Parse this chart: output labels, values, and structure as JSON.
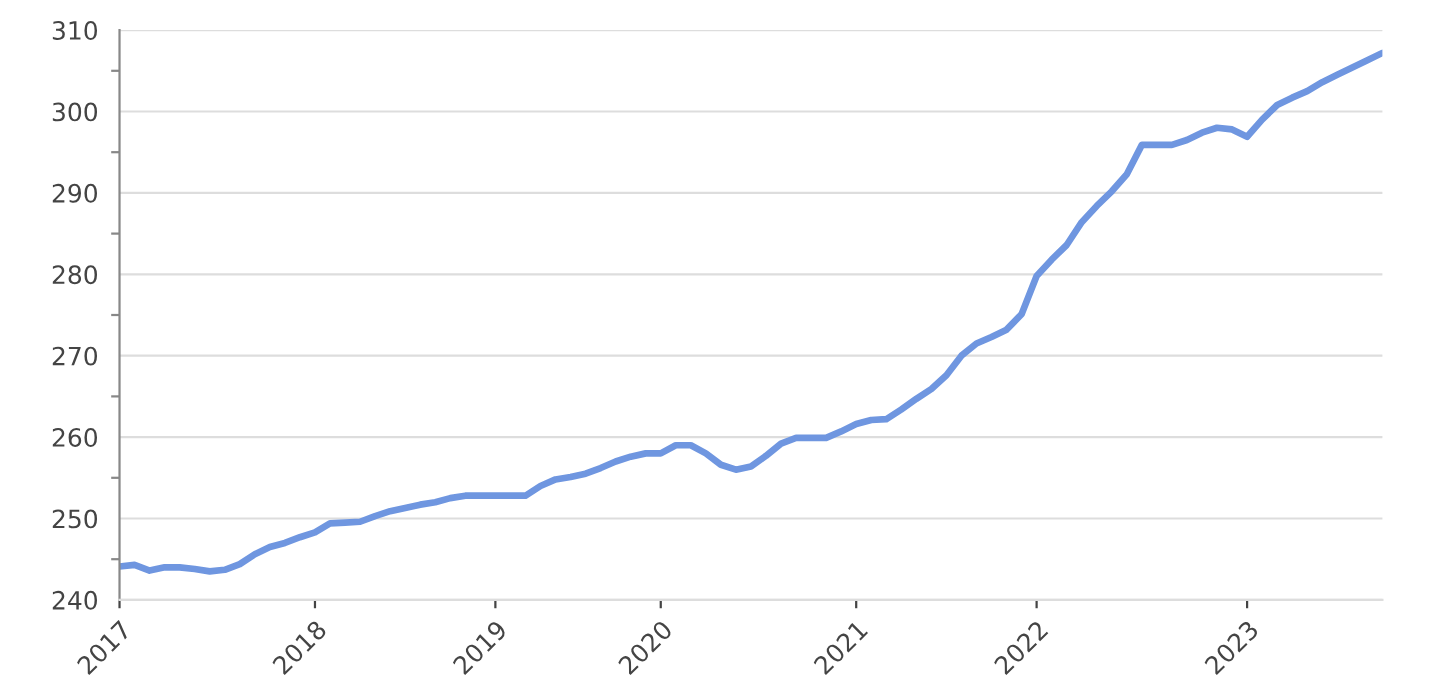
{
  "chart_data": {
    "type": "line",
    "categories": [
      "2017",
      null,
      null,
      null,
      null,
      null,
      null,
      null,
      null,
      null,
      null,
      null,
      null,
      "2018",
      null,
      null,
      null,
      null,
      null,
      null,
      null,
      null,
      null,
      null,
      null,
      "2019",
      null,
      null,
      null,
      null,
      null,
      null,
      null,
      null,
      null,
      null,
      "2020",
      null,
      null,
      null,
      null,
      null,
      null,
      null,
      null,
      null,
      null,
      null,
      null,
      "2021",
      null,
      null,
      null,
      null,
      null,
      null,
      null,
      null,
      null,
      null,
      null,
      "2022",
      null,
      null,
      null,
      null,
      null,
      null,
      null,
      null,
      null,
      null,
      null,
      null,
      null,
      "2023",
      null,
      null,
      null,
      null,
      null,
      null,
      null,
      null,
      null
    ],
    "series": [
      {
        "color": "#6f96e0",
        "values": [
          244.1,
          244.3,
          243.6,
          244.0,
          244.0,
          243.8,
          243.5,
          243.7,
          244.4,
          245.6,
          246.5,
          247.0,
          247.7,
          248.3,
          249.4,
          249.5,
          249.6,
          250.3,
          250.9,
          251.3,
          251.7,
          252.0,
          252.5,
          252.8,
          252.8,
          252.8,
          252.8,
          252.8,
          254.0,
          254.8,
          255.1,
          255.5,
          256.2,
          257.0,
          257.6,
          258.0,
          258.0,
          259.0,
          259.0,
          258.0,
          256.6,
          256.0,
          256.4,
          257.7,
          259.2,
          259.9,
          259.9,
          259.9,
          260.7,
          261.6,
          262.1,
          262.2,
          263.4,
          264.7,
          265.9,
          267.6,
          270.0,
          271.5,
          272.3,
          273.2,
          275.1,
          279.8,
          281.8,
          283.6,
          286.4,
          288.4,
          290.2,
          292.3,
          295.9,
          295.9,
          295.9,
          296.5,
          297.4,
          298.0,
          297.8,
          296.9,
          299.0,
          300.8,
          301.7,
          302.5,
          303.6,
          304.5,
          305.4,
          306.3,
          307.2
        ]
      }
    ],
    "ylim": [
      240,
      310
    ],
    "yticks": [
      240,
      {
        "value": 245,
        "label": null
      },
      250,
      {
        "value": 255,
        "label": null
      },
      260,
      {
        "value": 265,
        "label": null
      },
      270,
      {
        "value": 275,
        "label": null
      },
      280,
      {
        "value": 285,
        "label": null
      },
      290,
      {
        "value": 295,
        "label": null
      },
      300,
      {
        "value": 305,
        "label": null
      },
      310
    ],
    "grid": "y",
    "marker": "none",
    "line_style": "solid"
  }
}
